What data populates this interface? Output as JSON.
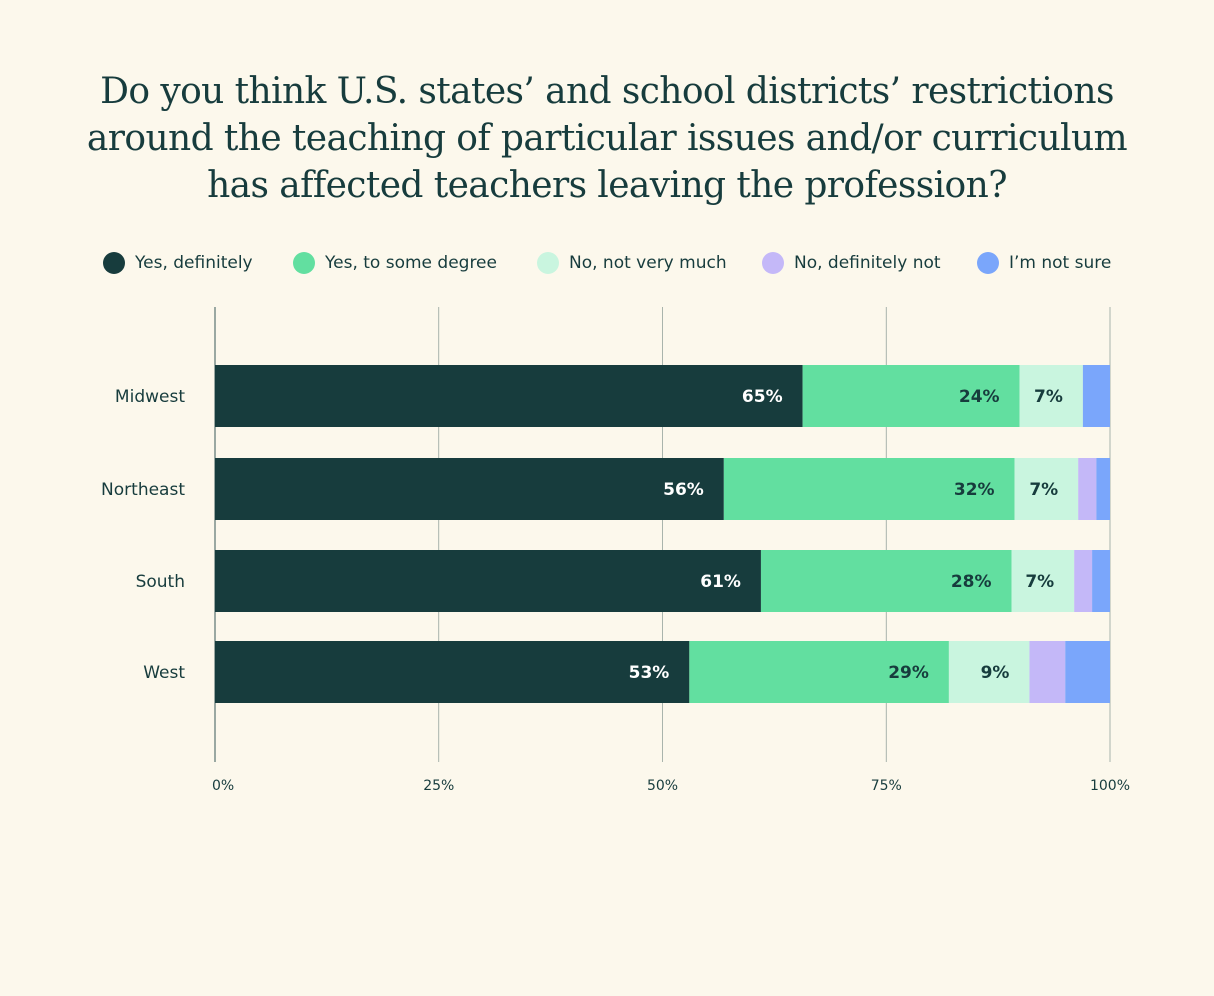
{
  "chart_data": {
    "type": "bar",
    "orientation": "horizontal",
    "stacked": true,
    "title": "Do you think U.S. states’ and school districts’ restrictions around the teaching of particular issues and/or curriculum has affected teachers leaving the profession?",
    "categories": [
      "Midwest",
      "Northeast",
      "South",
      "West"
    ],
    "series": [
      {
        "name": "Yes, definitely",
        "color": "#173c3d",
        "values": [
          65,
          56,
          61,
          53
        ],
        "labels": [
          "65%",
          "56%",
          "61%",
          "53%"
        ],
        "label_color": "#ffffff"
      },
      {
        "name": "Yes, to some degree",
        "color": "#62dfa0",
        "values": [
          24,
          32,
          28,
          29
        ],
        "labels": [
          "24%",
          "32%",
          "28%",
          "29%"
        ],
        "label_color": "#173c3d"
      },
      {
        "name": "No, not very much",
        "color": "#c9f5df",
        "values": [
          7,
          7,
          7,
          9
        ],
        "labels": [
          "7%",
          "7%",
          "7%",
          "9%"
        ],
        "label_color": "#173c3d"
      },
      {
        "name": "No, definitely not",
        "color": "#c4b8f8",
        "values": [
          0,
          2,
          2,
          4
        ],
        "labels": [
          "",
          "",
          "",
          ""
        ],
        "label_color": "#173c3d"
      },
      {
        "name": "I’m not sure",
        "color": "#7aa6fb",
        "values": [
          3,
          1.5,
          2,
          5
        ],
        "labels": [
          "",
          "",
          "",
          ""
        ],
        "label_color": "#173c3d"
      }
    ],
    "xlim": [
      0,
      100
    ],
    "xticks": [
      "0%",
      "25%",
      "50%",
      "75%",
      "100%"
    ],
    "xtick_values": [
      0,
      25,
      50,
      75,
      100
    ],
    "legend_position": "top",
    "grid": true,
    "xlabel": "",
    "ylabel": ""
  }
}
